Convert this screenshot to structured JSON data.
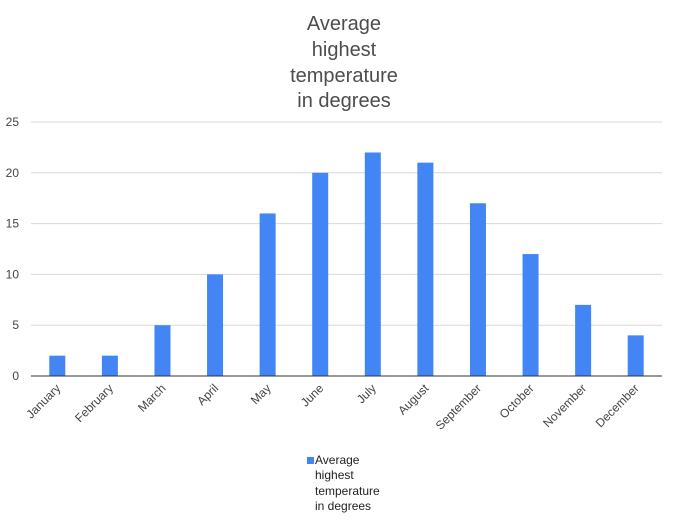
{
  "chart_data": {
    "type": "bar",
    "title_lines": [
      "Average",
      "highest",
      "temperature",
      "in degrees"
    ],
    "categories": [
      "January",
      "February",
      "March",
      "April",
      "May",
      "June",
      "July",
      "August",
      "September",
      "October",
      "November",
      "December"
    ],
    "series": [
      {
        "name_lines": [
          "Average",
          "highest",
          "temperature",
          "in degrees"
        ],
        "color": "#4285f4",
        "values": [
          2,
          2,
          5,
          10,
          16,
          20,
          22,
          21,
          17,
          12,
          7,
          4
        ]
      }
    ],
    "ylim": [
      0,
      25
    ],
    "yticks": [
      0,
      5,
      10,
      15,
      20,
      25
    ],
    "grid": true,
    "legend_position": "bottom"
  }
}
